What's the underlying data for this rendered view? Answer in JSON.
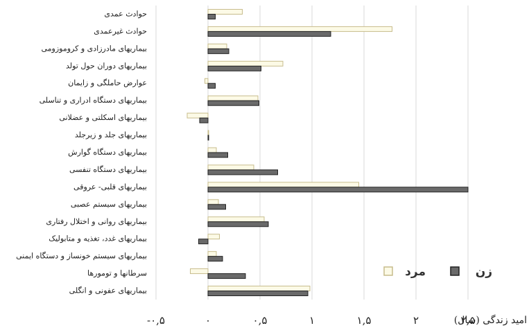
{
  "chart_data": {
    "type": "hbar",
    "x_label": "امید زندگی (سال)",
    "categories": [
      "حوادث عمدی",
      "حوادث غیرعمدی",
      "بیماریهای مادرزادی و کروموزومی",
      "بیماریهای دوران حول تولد",
      "عوارض حاملگی و زایمان",
      "بیماریهای دستگاه ادراری و تناسلی",
      "بیماریهای اسکلتی و عضلانی",
      "بیماریهای جلد و زیرجلد",
      "بیماریهای دستگاه گوارش",
      "بیماریهای دستگاه تنفسی",
      "بیماریهای قلبی- عروقی",
      "بیماریهای سیستم عصبی",
      "بیماریهای روانی و اختلال رفتاری",
      "بیماریهای غدد، تغذیه و متابولیک",
      "بیماریهای سیستم خونساز و دستگاه ایمنی",
      "سرطانها و تومورها",
      "بیماریهای عفونی و انگلی"
    ],
    "series": [
      {
        "name": "مرد",
        "color": "#fcfae6",
        "edge": "#c7bc8c",
        "values": [
          0.33,
          1.77,
          0.18,
          0.72,
          -0.03,
          0.48,
          -0.2,
          0,
          0.08,
          0.44,
          1.45,
          0.1,
          0.54,
          0.11,
          0.08,
          -0.17,
          0.98
        ]
      },
      {
        "name": "زن",
        "color": "#6a6a6a",
        "edge": "#222222",
        "values": [
          0.07,
          1.18,
          0.2,
          0.51,
          0.07,
          0.49,
          -0.08,
          0,
          0.19,
          0.67,
          2.5,
          0.17,
          0.58,
          -0.09,
          0.14,
          0.36,
          0.96
        ]
      }
    ],
    "xlim": [
      -0.5,
      2.5
    ],
    "xticks": [
      {
        "value": -0.5,
        "label": "-۰,۵"
      },
      {
        "value": 0,
        "label": "۰"
      },
      {
        "value": 0.5,
        "label": "۰,۵"
      },
      {
        "value": 1,
        "label": "۱"
      },
      {
        "value": 1.5,
        "label": "۱,۵"
      },
      {
        "value": 2,
        "label": "۲"
      },
      {
        "value": 2.5,
        "label": "۲,۵"
      }
    ],
    "grid": true,
    "legend": "bottom-right"
  }
}
